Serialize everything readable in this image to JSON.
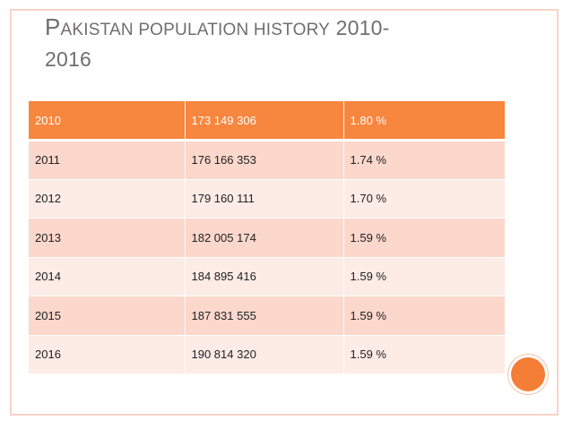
{
  "title": {
    "first_letter": "P",
    "rest_small_caps": "akistan population history",
    "years": "2010-",
    "line2": "2016"
  },
  "table": {
    "rows": [
      {
        "year": "2010",
        "population": "173 149 306",
        "growth": "1.80 %"
      },
      {
        "year": "2011",
        "population": "176 166 353",
        "growth": "1.74 %"
      },
      {
        "year": "2012",
        "population": "179 160 111",
        "growth": "1.70 %"
      },
      {
        "year": "2013",
        "population": "182 005 174",
        "growth": "1.59 %"
      },
      {
        "year": "2014",
        "population": "184 895 416",
        "growth": "1.59 %"
      },
      {
        "year": "2015",
        "population": "187 831 555",
        "growth": "1.59 %"
      },
      {
        "year": "2016",
        "population": "190 814 320",
        "growth": "1.59 %"
      }
    ]
  },
  "colors": {
    "accent": "#f7863f",
    "band_dark": "#fbd7cc",
    "band_light": "#fdebe6",
    "title_text": "#706e6e",
    "frame": "#f8d2c7"
  }
}
